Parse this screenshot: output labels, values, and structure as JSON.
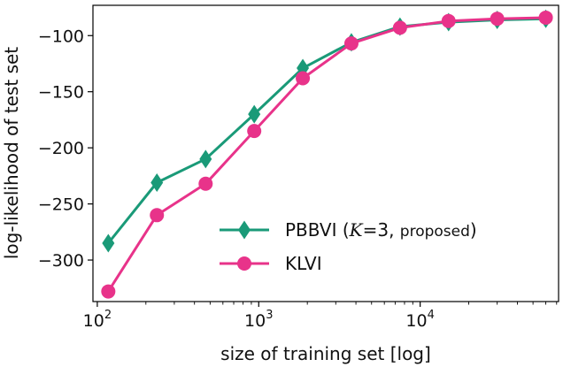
{
  "chart_data": {
    "type": "line",
    "xlabel": "size of training set [log]",
    "ylabel": "log-likelihood of test set",
    "x_scale": "log",
    "xlim": [
      94,
      72000
    ],
    "ylim": [
      -337,
      -73
    ],
    "grid": false,
    "legend_position": "lower-right",
    "x_ticks": [
      {
        "value": 100,
        "base": "10",
        "exp": "2"
      },
      {
        "value": 1000,
        "base": "10",
        "exp": "3"
      },
      {
        "value": 10000,
        "base": "10",
        "exp": "4"
      }
    ],
    "y_ticks": [
      {
        "value": -100,
        "label": "−100"
      },
      {
        "value": -150,
        "label": "−150"
      },
      {
        "value": -200,
        "label": "−200"
      },
      {
        "value": -250,
        "label": "−250"
      },
      {
        "value": -300,
        "label": "−300"
      }
    ],
    "x": [
      117,
      234,
      469,
      938,
      1875,
      3750,
      7500,
      15000,
      30000,
      60000
    ],
    "series": [
      {
        "name": "PBBVI (K=3, proposed)",
        "legend_parts": [
          "PBBVI (",
          "K",
          "=3, ",
          "proposed",
          ")"
        ],
        "color": "#1a9a78",
        "marker": "diamond",
        "values": [
          -285,
          -231,
          -210,
          -170,
          -129,
          -106,
          -92,
          -88,
          -86,
          -85
        ]
      },
      {
        "name": "KLVI",
        "legend_parts": [
          "KLVI"
        ],
        "color": "#e8338a",
        "marker": "circle",
        "values": [
          -328,
          -260,
          -232,
          -185,
          -138,
          -107,
          -93,
          -87,
          -85,
          -84
        ]
      }
    ]
  }
}
